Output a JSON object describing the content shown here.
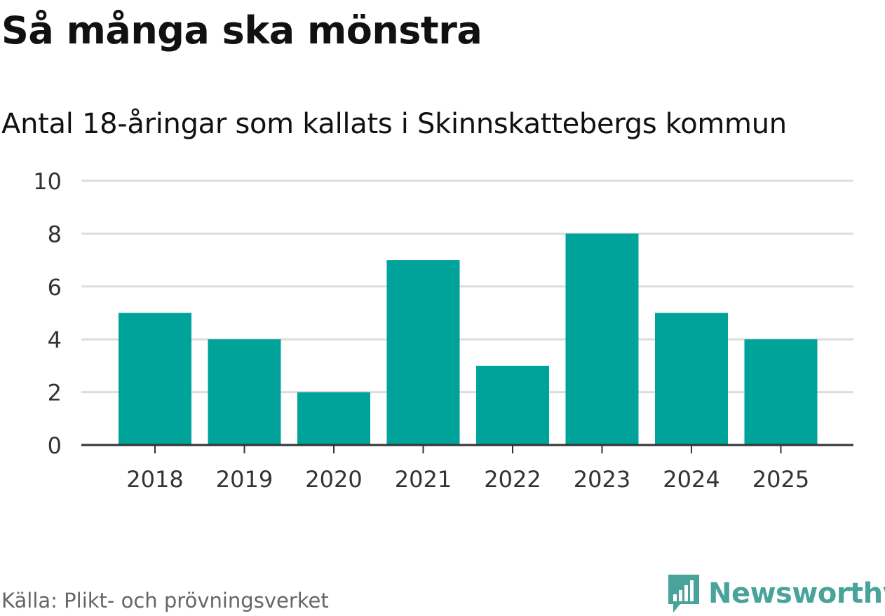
{
  "header": {
    "title": "Så många ska mönstra",
    "subtitle": "Antal 18-åringar som kallats i Skinnskattebergs kommun"
  },
  "footer": {
    "source": "Källa: Plikt- och prövningsverket",
    "brand": "Newsworthy",
    "brand_icon": "bar-chart-speech-bubble-icon"
  },
  "colors": {
    "bar": "#00a39a",
    "grid": "#dddddd",
    "axis": "#333333",
    "brand": "#4aa39b"
  },
  "chart_data": {
    "type": "bar",
    "categories": [
      "2018",
      "2019",
      "2020",
      "2021",
      "2022",
      "2023",
      "2024",
      "2025"
    ],
    "values": [
      5,
      4,
      2,
      7,
      3,
      8,
      5,
      4
    ],
    "yticks": [
      0,
      2,
      4,
      6,
      8,
      10
    ],
    "ylim": [
      0,
      10
    ],
    "grid": true,
    "legend": "none"
  }
}
